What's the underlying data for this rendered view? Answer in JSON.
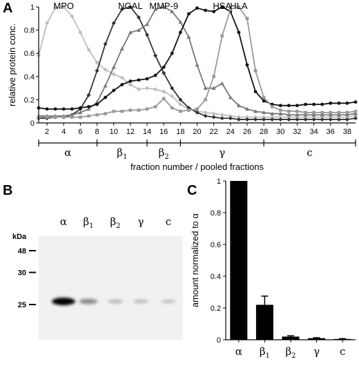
{
  "panels": [
    {
      "letter": "A"
    },
    {
      "letter": "B"
    },
    {
      "letter": "C"
    }
  ],
  "chart_data": [
    {
      "type": "line",
      "panel": "A",
      "xlabel": "fraction number / pooled fractions",
      "ylabel": "relative protein conc.",
      "xlim": [
        1,
        39
      ],
      "ylim": [
        0,
        1.0
      ],
      "x_ticks": [
        2,
        4,
        6,
        8,
        10,
        12,
        14,
        16,
        18,
        20,
        22,
        24,
        26,
        28,
        30,
        32,
        34,
        36,
        38
      ],
      "y_ticks": [
        0.0,
        0.2,
        0.4,
        0.6,
        0.8,
        1.0
      ],
      "x": [
        1,
        2,
        3,
        4,
        5,
        6,
        7,
        8,
        9,
        10,
        11,
        12,
        13,
        14,
        15,
        16,
        17,
        18,
        19,
        20,
        21,
        22,
        23,
        24,
        25,
        26,
        27,
        28,
        29,
        30,
        31,
        32,
        33,
        34,
        35,
        36,
        37,
        38,
        39
      ],
      "series": [
        {
          "name": "MPO",
          "color": "#bdbdbd",
          "marker": "diamond",
          "values": [
            0.58,
            0.86,
            0.99,
            1.0,
            0.92,
            0.78,
            0.63,
            0.52,
            0.46,
            0.42,
            0.39,
            0.33,
            0.29,
            0.3,
            0.29,
            0.27,
            0.23,
            0.16,
            0.12,
            0.1,
            0.09,
            0.08,
            0.07,
            0.06,
            0.05,
            0.05,
            0.05,
            0.05,
            0.05,
            0.05,
            0.05,
            0.05,
            0.05,
            0.05,
            0.05,
            0.05,
            0.05,
            0.05,
            0.06
          ]
        },
        {
          "name": "NGAL",
          "color": "#333333",
          "marker": "diamond",
          "values": [
            0.04,
            0.04,
            0.05,
            0.05,
            0.07,
            0.12,
            0.24,
            0.45,
            0.68,
            0.86,
            0.98,
            1.0,
            0.91,
            0.76,
            0.58,
            0.43,
            0.3,
            0.2,
            0.13,
            0.09,
            0.06,
            0.05,
            0.04,
            0.04,
            0.03,
            0.03,
            0.03,
            0.03,
            0.03,
            0.03,
            0.03,
            0.03,
            0.03,
            0.03,
            0.03,
            0.03,
            0.03,
            0.03,
            0.04
          ]
        },
        {
          "name": "MMP-9",
          "color": "#777777",
          "marker": "triangle",
          "values": [
            0.06,
            0.06,
            0.06,
            0.06,
            0.07,
            0.09,
            0.12,
            0.18,
            0.32,
            0.48,
            0.64,
            0.78,
            0.8,
            0.85,
            0.98,
            1.0,
            0.96,
            0.87,
            0.74,
            0.5,
            0.3,
            0.3,
            0.34,
            0.22,
            0.15,
            0.12,
            0.1,
            0.09,
            0.08,
            0.08,
            0.07,
            0.07,
            0.07,
            0.07,
            0.07,
            0.07,
            0.07,
            0.07,
            0.08
          ]
        },
        {
          "name": "HSA",
          "color": "#111111",
          "marker": "circle",
          "values": [
            0.13,
            0.12,
            0.12,
            0.12,
            0.12,
            0.13,
            0.14,
            0.16,
            0.22,
            0.28,
            0.33,
            0.36,
            0.37,
            0.38,
            0.41,
            0.48,
            0.6,
            0.78,
            0.94,
            0.99,
            0.97,
            0.96,
            1.0,
            0.96,
            0.78,
            0.5,
            0.27,
            0.19,
            0.16,
            0.15,
            0.15,
            0.15,
            0.16,
            0.16,
            0.16,
            0.17,
            0.17,
            0.17,
            0.18
          ]
        },
        {
          "name": "HLA",
          "color": "#999999",
          "marker": "square",
          "values": [
            0.05,
            0.05,
            0.05,
            0.05,
            0.05,
            0.05,
            0.06,
            0.07,
            0.08,
            0.1,
            0.1,
            0.11,
            0.11,
            0.12,
            0.14,
            0.21,
            0.13,
            0.1,
            0.11,
            0.12,
            0.2,
            0.4,
            0.75,
            0.98,
            1.0,
            0.9,
            0.45,
            0.22,
            0.14,
            0.11,
            0.1,
            0.1,
            0.09,
            0.09,
            0.09,
            0.09,
            0.09,
            0.09,
            0.1
          ]
        }
      ],
      "pools": [
        {
          "label": "α",
          "from": 1,
          "to": 8
        },
        {
          "label": "β",
          "sub": "1",
          "from": 8,
          "to": 14
        },
        {
          "label": "β",
          "sub": "2",
          "from": 14,
          "to": 18
        },
        {
          "label": "γ",
          "from": 18,
          "to": 28
        },
        {
          "label": "c",
          "from": 28,
          "to": 39
        }
      ]
    },
    {
      "type": "blot",
      "panel": "B",
      "unit_label": "kDa",
      "markers": [
        {
          "label": "48",
          "level": 0.14
        },
        {
          "label": "30",
          "level": 0.35
        },
        {
          "label": "25",
          "level": 0.66
        }
      ],
      "lanes": [
        {
          "label": "α",
          "intensity": 1.0
        },
        {
          "label": "β",
          "sub": "1",
          "intensity": 0.22
        },
        {
          "label": "β",
          "sub": "2",
          "intensity": 0.03
        },
        {
          "label": "γ",
          "intensity": 0.01
        },
        {
          "label": "c",
          "intensity": 0.005
        }
      ]
    },
    {
      "type": "bar",
      "panel": "C",
      "ylabel": "amount normalized to α",
      "ylim": [
        0,
        1.0
      ],
      "y_ticks": [
        0.0,
        0.2,
        0.4,
        0.6,
        0.8,
        1.0
      ],
      "categories": [
        {
          "label": "α"
        },
        {
          "label": "β",
          "sub": "1"
        },
        {
          "label": "β",
          "sub": "2"
        },
        {
          "label": "γ"
        },
        {
          "label": "c"
        }
      ],
      "values": [
        1.0,
        0.22,
        0.02,
        0.01,
        0.005
      ],
      "errors": [
        0.0,
        0.055,
        0.005,
        0.003,
        0.002
      ]
    }
  ]
}
